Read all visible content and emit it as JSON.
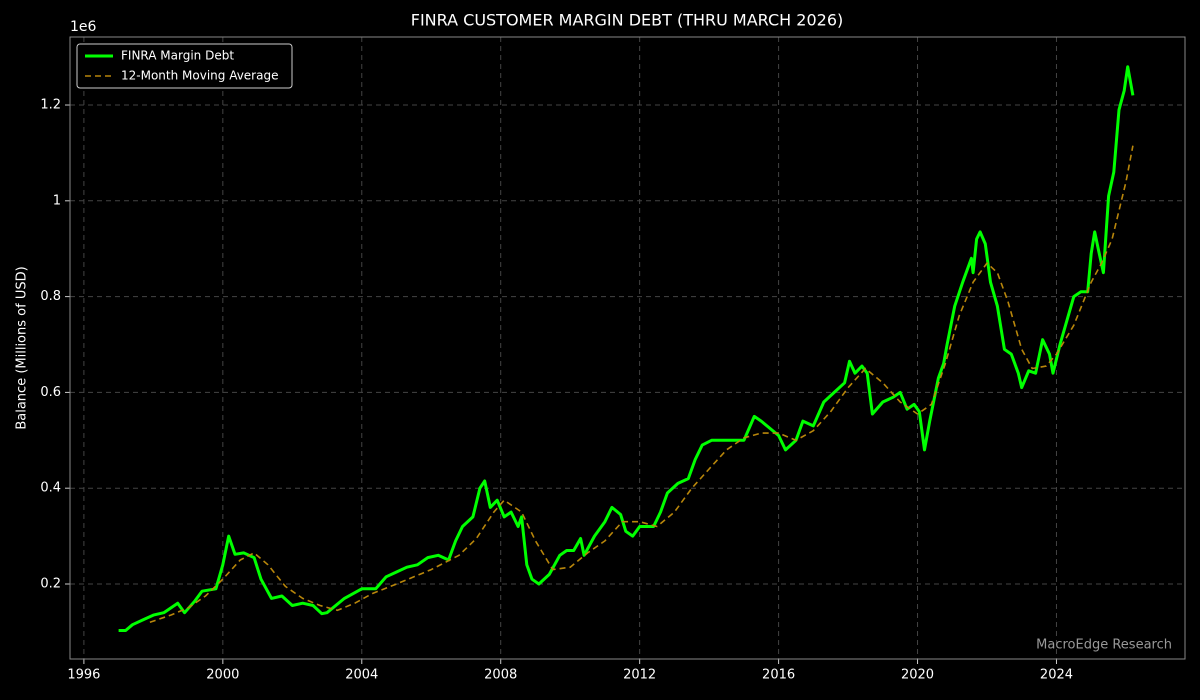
{
  "chart_data": {
    "type": "line",
    "title": "FINRA CUSTOMER MARGIN DEBT (THRU MARCH 2026)",
    "y_label": "Balance (Millions of USD)",
    "offset_label": "1e6",
    "watermark": "MacroEdge Research",
    "xlim": [
      1995.6,
      2027.7
    ],
    "xticks": [
      1996,
      2000,
      2004,
      2008,
      2012,
      2016,
      2020,
      2024
    ],
    "ylim": [
      0.0434,
      1.342
    ],
    "yticks": [
      0.2,
      0.4,
      0.6,
      0.8,
      1.0,
      1.2
    ],
    "grid": true,
    "legend": "upper left",
    "series": [
      {
        "name": "FINRA Margin Debt",
        "color": "#00ff00",
        "style": "solid",
        "x": [
          1997.0,
          1997.2,
          1997.4,
          1997.7,
          1998.0,
          1998.3,
          1998.7,
          1998.9,
          1999.2,
          1999.4,
          1999.8,
          2000.0,
          2000.17,
          2000.35,
          2000.6,
          2000.9,
          2001.1,
          2001.4,
          2001.7,
          2002.0,
          2002.3,
          2002.6,
          2002.85,
          2003.0,
          2003.5,
          2004.0,
          2004.4,
          2004.7,
          2005.0,
          2005.3,
          2005.6,
          2005.9,
          2006.2,
          2006.5,
          2006.7,
          2006.9,
          2007.2,
          2007.4,
          2007.54,
          2007.7,
          2007.9,
          2008.1,
          2008.3,
          2008.5,
          2008.6,
          2008.75,
          2008.9,
          2009.1,
          2009.4,
          2009.7,
          2009.9,
          2010.1,
          2010.3,
          2010.4,
          2010.7,
          2011.0,
          2011.2,
          2011.45,
          2011.6,
          2011.8,
          2012.0,
          2012.4,
          2012.6,
          2012.8,
          2013.1,
          2013.4,
          2013.6,
          2013.8,
          2014.07,
          2014.5,
          2015.0,
          2015.3,
          2015.5,
          2016.0,
          2016.2,
          2016.5,
          2016.7,
          2017.0,
          2017.3,
          2017.6,
          2017.9,
          2018.04,
          2018.2,
          2018.4,
          2018.55,
          2018.7,
          2019.0,
          2019.3,
          2019.5,
          2019.7,
          2019.9,
          2020.05,
          2020.2,
          2020.35,
          2020.6,
          2020.75,
          2020.85,
          2021.07,
          2021.3,
          2021.55,
          2021.6,
          2021.7,
          2021.8,
          2021.95,
          2022.1,
          2022.3,
          2022.5,
          2022.7,
          2022.9,
          2023.0,
          2023.2,
          2023.4,
          2023.6,
          2023.8,
          2023.9,
          2024.1,
          2024.3,
          2024.5,
          2024.7,
          2024.9,
          2025.0,
          2025.1,
          2025.2,
          2025.35,
          2025.5,
          2025.65,
          2025.8,
          2025.95,
          2026.05,
          2026.2
        ],
        "values": [
          0.103,
          0.103,
          0.115,
          0.125,
          0.135,
          0.14,
          0.16,
          0.14,
          0.165,
          0.185,
          0.19,
          0.24,
          0.3,
          0.262,
          0.265,
          0.255,
          0.21,
          0.17,
          0.175,
          0.155,
          0.16,
          0.155,
          0.138,
          0.14,
          0.17,
          0.19,
          0.19,
          0.215,
          0.225,
          0.235,
          0.24,
          0.255,
          0.26,
          0.25,
          0.29,
          0.32,
          0.34,
          0.4,
          0.415,
          0.36,
          0.375,
          0.34,
          0.35,
          0.32,
          0.34,
          0.24,
          0.21,
          0.2,
          0.22,
          0.26,
          0.27,
          0.27,
          0.295,
          0.26,
          0.3,
          0.33,
          0.36,
          0.345,
          0.31,
          0.3,
          0.32,
          0.32,
          0.35,
          0.39,
          0.41,
          0.42,
          0.46,
          0.49,
          0.5,
          0.5,
          0.5,
          0.55,
          0.54,
          0.51,
          0.48,
          0.5,
          0.54,
          0.53,
          0.58,
          0.6,
          0.62,
          0.665,
          0.64,
          0.655,
          0.64,
          0.555,
          0.58,
          0.59,
          0.6,
          0.565,
          0.575,
          0.56,
          0.48,
          0.54,
          0.63,
          0.66,
          0.7,
          0.78,
          0.83,
          0.88,
          0.85,
          0.92,
          0.935,
          0.91,
          0.83,
          0.78,
          0.69,
          0.68,
          0.64,
          0.61,
          0.645,
          0.64,
          0.71,
          0.68,
          0.64,
          0.7,
          0.75,
          0.8,
          0.81,
          0.81,
          0.89,
          0.935,
          0.9,
          0.85,
          1.01,
          1.06,
          1.19,
          1.23,
          1.28,
          1.22
        ]
      },
      {
        "name": "12-Month Moving Average",
        "color": "#b8860b",
        "style": "dashed",
        "x": [
          1997.9,
          1998.5,
          1999.0,
          1999.5,
          2000.0,
          2000.5,
          2000.9,
          2001.3,
          2001.8,
          2002.3,
          2002.8,
          2003.3,
          2003.8,
          2004.3,
          2005.0,
          2006.0,
          2006.8,
          2007.3,
          2007.8,
          2008.1,
          2008.6,
          2009.0,
          2009.5,
          2010.0,
          2010.5,
          2011.0,
          2011.5,
          2012.0,
          2012.5,
          2013.0,
          2013.5,
          2014.0,
          2014.5,
          2015.0,
          2015.5,
          2016.0,
          2016.5,
          2017.0,
          2017.5,
          2018.0,
          2018.5,
          2019.0,
          2019.5,
          2020.0,
          2020.4,
          2020.8,
          2021.2,
          2021.6,
          2022.0,
          2022.3,
          2022.6,
          2023.0,
          2023.3,
          2023.7,
          2024.0,
          2024.5,
          2025.0,
          2025.3,
          2025.6,
          2026.0,
          2026.2
        ],
        "values": [
          0.12,
          0.135,
          0.15,
          0.175,
          0.21,
          0.25,
          0.265,
          0.24,
          0.195,
          0.17,
          0.155,
          0.145,
          0.16,
          0.18,
          0.2,
          0.23,
          0.26,
          0.295,
          0.35,
          0.375,
          0.35,
          0.29,
          0.23,
          0.235,
          0.265,
          0.29,
          0.33,
          0.33,
          0.32,
          0.35,
          0.4,
          0.44,
          0.48,
          0.505,
          0.515,
          0.515,
          0.5,
          0.52,
          0.56,
          0.61,
          0.65,
          0.62,
          0.58,
          0.555,
          0.575,
          0.66,
          0.76,
          0.83,
          0.87,
          0.85,
          0.79,
          0.69,
          0.65,
          0.655,
          0.68,
          0.74,
          0.83,
          0.87,
          0.92,
          1.04,
          1.115
        ]
      }
    ]
  }
}
